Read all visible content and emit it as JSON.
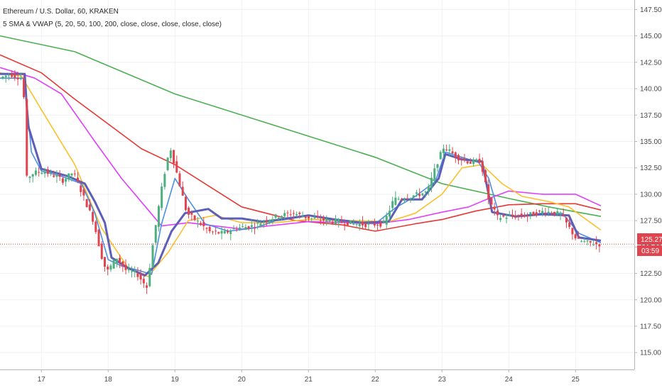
{
  "header": {
    "title": "Ethereum / U.S. Dollar, 60, KRAKEN",
    "indicator": "5 SMA & VWAP (5, 20, 50, 100, 200, close, close, close, close, close)"
  },
  "price_tag": {
    "price": "125.27",
    "countdown": "03:59",
    "color": "#e0454f"
  },
  "chart_data": {
    "type": "line",
    "x_ticks": [
      "17",
      "18",
      "19",
      "20",
      "21",
      "22",
      "23",
      "24",
      "25"
    ],
    "x_tick_values": [
      17,
      18,
      19,
      20,
      21,
      22,
      23,
      24,
      25
    ],
    "xlim": [
      16.38,
      25.88
    ],
    "y_ticks": [
      "115.00",
      "117.50",
      "120.00",
      "122.50",
      "125.00",
      "127.50",
      "130.00",
      "132.50",
      "135.00",
      "137.50",
      "140.00",
      "142.50",
      "145.00",
      "147.50"
    ],
    "ylim": [
      113.4,
      148.4
    ],
    "grid": true,
    "candles_color_up": "#4caf7d",
    "candles_color_down": "#e0454f",
    "price_series": [
      [
        16.4,
        141.0
      ],
      [
        16.55,
        141.4
      ],
      [
        16.75,
        140.9
      ],
      [
        16.8,
        131.5
      ],
      [
        16.9,
        132.0
      ],
      [
        17.05,
        132.2
      ],
      [
        17.2,
        131.8
      ],
      [
        17.35,
        131.3
      ],
      [
        17.5,
        132.1
      ],
      [
        17.65,
        129.8
      ],
      [
        17.8,
        127.5
      ],
      [
        17.92,
        124.2
      ],
      [
        18.0,
        122.6
      ],
      [
        18.15,
        124.0
      ],
      [
        18.3,
        122.7
      ],
      [
        18.45,
        122.5
      ],
      [
        18.6,
        121.2
      ],
      [
        18.72,
        126.5
      ],
      [
        18.85,
        131.5
      ],
      [
        18.95,
        134.5
      ],
      [
        19.05,
        132.0
      ],
      [
        19.2,
        128.2
      ],
      [
        19.4,
        127.2
      ],
      [
        19.55,
        126.4
      ],
      [
        19.75,
        126.3
      ],
      [
        19.95,
        126.8
      ],
      [
        20.2,
        127.0
      ],
      [
        20.4,
        127.6
      ],
      [
        20.6,
        128.0
      ],
      [
        20.8,
        128.2
      ],
      [
        21.0,
        127.8
      ],
      [
        21.3,
        127.5
      ],
      [
        21.6,
        127.3
      ],
      [
        21.9,
        127.1
      ],
      [
        22.15,
        127.2
      ],
      [
        22.3,
        129.5
      ],
      [
        22.55,
        129.8
      ],
      [
        22.8,
        130.2
      ],
      [
        22.95,
        133.0
      ],
      [
        23.05,
        134.5
      ],
      [
        23.25,
        133.5
      ],
      [
        23.45,
        133.0
      ],
      [
        23.6,
        133.2
      ],
      [
        23.72,
        129.5
      ],
      [
        23.85,
        127.8
      ],
      [
        24.05,
        127.9
      ],
      [
        24.3,
        128.0
      ],
      [
        24.55,
        128.4
      ],
      [
        24.8,
        128.1
      ],
      [
        25.05,
        125.6
      ],
      [
        25.2,
        125.4
      ],
      [
        25.38,
        125.27
      ]
    ],
    "series": [
      {
        "color": "#4caf50",
        "values": [
          [
            16.38,
            145.0
          ],
          [
            17.5,
            143.5
          ],
          [
            19.0,
            139.5
          ],
          [
            20.5,
            136.5
          ],
          [
            22.0,
            133.5
          ],
          [
            23.0,
            131.0
          ],
          [
            24.0,
            129.6
          ],
          [
            24.6,
            128.8
          ],
          [
            25.38,
            127.9
          ]
        ]
      },
      {
        "color": "#e53935",
        "values": [
          [
            16.38,
            143.2
          ],
          [
            17.0,
            141.5
          ],
          [
            17.5,
            139.0
          ],
          [
            18.5,
            134.3
          ],
          [
            19.0,
            132.8
          ],
          [
            20.0,
            128.8
          ],
          [
            20.8,
            127.5
          ],
          [
            21.5,
            127.1
          ],
          [
            22.0,
            126.5
          ],
          [
            22.6,
            127.2
          ],
          [
            23.0,
            127.6
          ],
          [
            23.5,
            128.4
          ],
          [
            24.0,
            129.0
          ],
          [
            24.5,
            129.1
          ],
          [
            25.0,
            129.1
          ],
          [
            25.38,
            128.5
          ]
        ]
      },
      {
        "color": "#e040fb",
        "values": [
          [
            16.38,
            142.0
          ],
          [
            16.9,
            141.0
          ],
          [
            17.3,
            139.5
          ],
          [
            17.8,
            135.0
          ],
          [
            18.2,
            131.5
          ],
          [
            18.6,
            128.5
          ],
          [
            18.8,
            127.0
          ],
          [
            19.2,
            127.3
          ],
          [
            19.6,
            127.0
          ],
          [
            20.0,
            126.7
          ],
          [
            20.4,
            127.0
          ],
          [
            21.0,
            127.4
          ],
          [
            21.6,
            127.3
          ],
          [
            22.0,
            127.2
          ],
          [
            22.5,
            127.6
          ],
          [
            23.0,
            128.3
          ],
          [
            23.4,
            128.8
          ],
          [
            23.7,
            129.6
          ],
          [
            24.0,
            130.3
          ],
          [
            24.5,
            130.0
          ],
          [
            25.0,
            130.0
          ],
          [
            25.38,
            128.9
          ]
        ]
      },
      {
        "color": "#fbc02d",
        "values": [
          [
            16.38,
            141.5
          ],
          [
            16.7,
            141.2
          ],
          [
            17.0,
            138.0
          ],
          [
            17.5,
            132.8
          ],
          [
            17.9,
            126.8
          ],
          [
            18.3,
            123.0
          ],
          [
            18.6,
            122.2
          ],
          [
            18.9,
            124.5
          ],
          [
            19.2,
            127.5
          ],
          [
            19.6,
            128.0
          ],
          [
            20.0,
            127.3
          ],
          [
            20.5,
            127.3
          ],
          [
            21.0,
            127.6
          ],
          [
            21.6,
            127.5
          ],
          [
            22.2,
            127.4
          ],
          [
            22.6,
            128.2
          ],
          [
            23.0,
            130.0
          ],
          [
            23.3,
            132.5
          ],
          [
            23.6,
            132.8
          ],
          [
            23.9,
            131.0
          ],
          [
            24.2,
            129.8
          ],
          [
            24.6,
            129.3
          ],
          [
            24.9,
            128.8
          ],
          [
            25.38,
            126.6
          ]
        ]
      },
      {
        "color": "#4a90e2",
        "values": [
          [
            16.38,
            141.0
          ],
          [
            16.75,
            141.0
          ],
          [
            16.85,
            134.0
          ],
          [
            17.0,
            132.2
          ],
          [
            17.3,
            131.7
          ],
          [
            17.6,
            131.0
          ],
          [
            17.8,
            128.2
          ],
          [
            18.0,
            123.8
          ],
          [
            18.2,
            123.2
          ],
          [
            18.45,
            122.8
          ],
          [
            18.65,
            122.4
          ],
          [
            18.8,
            127.2
          ],
          [
            19.0,
            131.5
          ],
          [
            19.2,
            129.5
          ],
          [
            19.45,
            127.2
          ],
          [
            19.8,
            126.5
          ],
          [
            20.2,
            126.8
          ],
          [
            20.6,
            127.7
          ],
          [
            21.0,
            128.0
          ],
          [
            21.5,
            127.4
          ],
          [
            22.0,
            127.2
          ],
          [
            22.3,
            128.7
          ],
          [
            22.6,
            129.8
          ],
          [
            22.9,
            131.2
          ],
          [
            23.05,
            134.0
          ],
          [
            23.3,
            133.5
          ],
          [
            23.55,
            133.0
          ],
          [
            23.7,
            131.5
          ],
          [
            23.85,
            128.2
          ],
          [
            24.1,
            127.9
          ],
          [
            24.5,
            128.2
          ],
          [
            24.8,
            128.2
          ],
          [
            25.05,
            126.3
          ],
          [
            25.38,
            125.4
          ]
        ]
      },
      {
        "color": "#5c5fb8",
        "values": [
          [
            16.38,
            141.4
          ],
          [
            16.75,
            141.4
          ],
          [
            16.8,
            136.5
          ],
          [
            17.0,
            132.4
          ],
          [
            17.4,
            131.7
          ],
          [
            17.65,
            131.0
          ],
          [
            17.8,
            129.3
          ],
          [
            17.95,
            127.3
          ],
          [
            18.05,
            124.0
          ],
          [
            18.3,
            123.0
          ],
          [
            18.55,
            122.3
          ],
          [
            18.75,
            123.5
          ],
          [
            18.95,
            126.5
          ],
          [
            19.15,
            128.2
          ],
          [
            19.5,
            128.6
          ],
          [
            19.7,
            127.7
          ],
          [
            20.0,
            127.7
          ],
          [
            20.3,
            127.4
          ],
          [
            20.6,
            127.6
          ],
          [
            21.0,
            128.0
          ],
          [
            21.4,
            127.6
          ],
          [
            21.8,
            127.3
          ],
          [
            22.2,
            127.4
          ],
          [
            22.4,
            129.5
          ],
          [
            22.7,
            129.5
          ],
          [
            22.95,
            131.5
          ],
          [
            23.05,
            133.8
          ],
          [
            23.3,
            133.3
          ],
          [
            23.6,
            133.1
          ],
          [
            23.75,
            128.3
          ],
          [
            24.1,
            127.9
          ],
          [
            24.5,
            128.1
          ],
          [
            24.9,
            128.0
          ],
          [
            25.05,
            125.9
          ],
          [
            25.38,
            125.6
          ]
        ]
      }
    ]
  }
}
